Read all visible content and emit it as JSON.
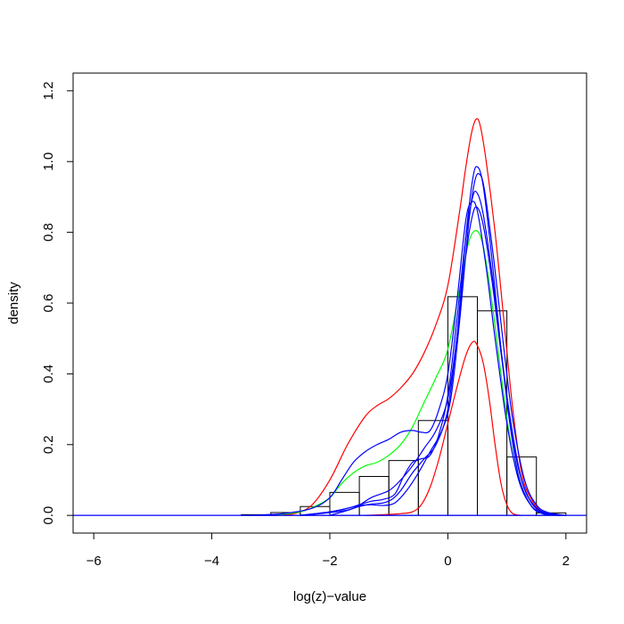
{
  "chart_data": {
    "type": "histogram",
    "title": "",
    "xlabel": "log(z)−value",
    "ylabel": "density",
    "xlim": [
      -6.35,
      2.35
    ],
    "ylim": [
      -0.05,
      1.25
    ],
    "x_ticks": [
      -6,
      -4,
      -2,
      0,
      2
    ],
    "x_tick_labels": [
      "−6",
      "−4",
      "−2",
      "0",
      "2"
    ],
    "y_ticks": [
      0.0,
      0.2,
      0.4,
      0.6,
      0.8,
      1.0,
      1.2
    ],
    "y_tick_labels": [
      "0.0",
      "0.2",
      "0.4",
      "0.6",
      "0.8",
      "1.0",
      "1.2"
    ],
    "grid": false,
    "legend": "none",
    "histogram": {
      "bin_width": 0.5,
      "bins": [
        {
          "x0": -3.5,
          "x1": -3.0,
          "density": 0.002
        },
        {
          "x0": -3.0,
          "x1": -2.5,
          "density": 0.008
        },
        {
          "x0": -2.5,
          "x1": -2.0,
          "density": 0.025
        },
        {
          "x0": -2.0,
          "x1": -1.5,
          "density": 0.065
        },
        {
          "x0": -1.5,
          "x1": -1.0,
          "density": 0.11
        },
        {
          "x0": -1.0,
          "x1": -0.5,
          "density": 0.155
        },
        {
          "x0": -0.5,
          "x1": 0.0,
          "density": 0.268
        },
        {
          "x0": 0.0,
          "x1": 0.5,
          "density": 0.618
        },
        {
          "x0": 0.5,
          "x1": 1.0,
          "density": 0.578
        },
        {
          "x0": 1.0,
          "x1": 1.5,
          "density": 0.165
        },
        {
          "x0": 1.5,
          "x1": 2.0,
          "density": 0.007
        }
      ]
    },
    "series": [
      {
        "role": "baseline",
        "color": "#0000ff",
        "points": [
          [
            -6.35,
            0
          ],
          [
            2.35,
            0
          ]
        ]
      },
      {
        "role": "upper-band",
        "color": "#ff0000",
        "points": [
          [
            -3.0,
            0.0
          ],
          [
            -2.6,
            0.005
          ],
          [
            -2.3,
            0.03
          ],
          [
            -2.0,
            0.1
          ],
          [
            -1.7,
            0.2
          ],
          [
            -1.4,
            0.28
          ],
          [
            -1.2,
            0.31
          ],
          [
            -1.0,
            0.33
          ],
          [
            -0.8,
            0.36
          ],
          [
            -0.6,
            0.4
          ],
          [
            -0.4,
            0.46
          ],
          [
            -0.2,
            0.54
          ],
          [
            0.0,
            0.65
          ],
          [
            0.2,
            0.86
          ],
          [
            0.3,
            0.98
          ],
          [
            0.4,
            1.08
          ],
          [
            0.48,
            1.12
          ],
          [
            0.55,
            1.1
          ],
          [
            0.65,
            1.0
          ],
          [
            0.8,
            0.8
          ],
          [
            0.95,
            0.55
          ],
          [
            1.1,
            0.3
          ],
          [
            1.25,
            0.12
          ],
          [
            1.4,
            0.05
          ],
          [
            1.6,
            0.01
          ],
          [
            1.9,
            0.0
          ]
        ]
      },
      {
        "role": "lower-band",
        "color": "#ff0000",
        "points": [
          [
            -1.4,
            0.0
          ],
          [
            -1.1,
            0.002
          ],
          [
            -0.8,
            0.005
          ],
          [
            -0.6,
            0.01
          ],
          [
            -0.45,
            0.03
          ],
          [
            -0.3,
            0.08
          ],
          [
            -0.15,
            0.16
          ],
          [
            0.0,
            0.26
          ],
          [
            0.15,
            0.36
          ],
          [
            0.3,
            0.45
          ],
          [
            0.42,
            0.49
          ],
          [
            0.5,
            0.48
          ],
          [
            0.6,
            0.43
          ],
          [
            0.7,
            0.33
          ],
          [
            0.8,
            0.2
          ],
          [
            0.9,
            0.09
          ],
          [
            1.0,
            0.03
          ],
          [
            1.1,
            0.005
          ],
          [
            1.25,
            0.0
          ]
        ]
      },
      {
        "role": "estimate",
        "color": "#00ff00",
        "points": [
          [
            -3.0,
            0.0
          ],
          [
            -2.5,
            0.01
          ],
          [
            -2.2,
            0.03
          ],
          [
            -2.0,
            0.05
          ],
          [
            -1.8,
            0.09
          ],
          [
            -1.6,
            0.12
          ],
          [
            -1.4,
            0.14
          ],
          [
            -1.2,
            0.15
          ],
          [
            -1.0,
            0.17
          ],
          [
            -0.8,
            0.2
          ],
          [
            -0.6,
            0.25
          ],
          [
            -0.4,
            0.32
          ],
          [
            -0.2,
            0.39
          ],
          [
            0.0,
            0.47
          ],
          [
            0.2,
            0.64
          ],
          [
            0.35,
            0.77
          ],
          [
            0.48,
            0.805
          ],
          [
            0.6,
            0.76
          ],
          [
            0.75,
            0.6
          ],
          [
            0.9,
            0.4
          ],
          [
            1.05,
            0.22
          ],
          [
            1.2,
            0.1
          ],
          [
            1.4,
            0.03
          ],
          [
            1.6,
            0.005
          ],
          [
            1.9,
            0.0
          ]
        ]
      },
      {
        "role": "replicate",
        "color": "#0000ff",
        "points": [
          [
            -3.4,
            0.0
          ],
          [
            -2.8,
            0.005
          ],
          [
            -2.3,
            0.02
          ],
          [
            -2.0,
            0.05
          ],
          [
            -1.8,
            0.1
          ],
          [
            -1.6,
            0.15
          ],
          [
            -1.4,
            0.18
          ],
          [
            -1.2,
            0.2
          ],
          [
            -1.0,
            0.215
          ],
          [
            -0.8,
            0.235
          ],
          [
            -0.6,
            0.24
          ],
          [
            -0.45,
            0.235
          ],
          [
            -0.3,
            0.24
          ],
          [
            -0.15,
            0.3
          ],
          [
            0.0,
            0.4
          ],
          [
            0.15,
            0.6
          ],
          [
            0.3,
            0.83
          ],
          [
            0.4,
            0.885
          ],
          [
            0.5,
            0.86
          ],
          [
            0.65,
            0.7
          ],
          [
            0.8,
            0.5
          ],
          [
            1.0,
            0.26
          ],
          [
            1.2,
            0.1
          ],
          [
            1.4,
            0.03
          ],
          [
            1.6,
            0.008
          ],
          [
            1.9,
            0.0
          ]
        ]
      },
      {
        "role": "replicate",
        "color": "#0000ff",
        "points": [
          [
            -2.5,
            0.0
          ],
          [
            -2.0,
            0.01
          ],
          [
            -1.7,
            0.02
          ],
          [
            -1.5,
            0.03
          ],
          [
            -1.3,
            0.04
          ],
          [
            -1.1,
            0.045
          ],
          [
            -0.9,
            0.06
          ],
          [
            -0.75,
            0.11
          ],
          [
            -0.6,
            0.15
          ],
          [
            -0.45,
            0.16
          ],
          [
            -0.3,
            0.17
          ],
          [
            -0.15,
            0.23
          ],
          [
            0.0,
            0.34
          ],
          [
            0.15,
            0.55
          ],
          [
            0.3,
            0.78
          ],
          [
            0.42,
            0.9
          ],
          [
            0.5,
            0.91
          ],
          [
            0.6,
            0.85
          ],
          [
            0.75,
            0.68
          ],
          [
            0.9,
            0.47
          ],
          [
            1.05,
            0.28
          ],
          [
            1.25,
            0.1
          ],
          [
            1.45,
            0.03
          ],
          [
            1.7,
            0.005
          ],
          [
            2.0,
            0.0
          ]
        ]
      },
      {
        "role": "replicate",
        "color": "#0000ff",
        "points": [
          [
            -2.5,
            0.0
          ],
          [
            -2.0,
            0.008
          ],
          [
            -1.7,
            0.015
          ],
          [
            -1.5,
            0.025
          ],
          [
            -1.3,
            0.032
          ],
          [
            -1.1,
            0.035
          ],
          [
            -0.95,
            0.045
          ],
          [
            -0.8,
            0.07
          ],
          [
            -0.6,
            0.12
          ],
          [
            -0.4,
            0.16
          ],
          [
            -0.2,
            0.2
          ],
          [
            0.0,
            0.3
          ],
          [
            0.15,
            0.5
          ],
          [
            0.3,
            0.78
          ],
          [
            0.42,
            0.95
          ],
          [
            0.5,
            0.985
          ],
          [
            0.6,
            0.93
          ],
          [
            0.75,
            0.72
          ],
          [
            0.9,
            0.47
          ],
          [
            1.05,
            0.26
          ],
          [
            1.2,
            0.11
          ],
          [
            1.4,
            0.03
          ],
          [
            1.6,
            0.005
          ],
          [
            1.9,
            0.0
          ]
        ]
      },
      {
        "role": "replicate",
        "color": "#0000ff",
        "points": [
          [
            -2.5,
            0.0
          ],
          [
            -2.0,
            0.01
          ],
          [
            -1.7,
            0.02
          ],
          [
            -1.5,
            0.028
          ],
          [
            -1.3,
            0.03
          ],
          [
            -1.1,
            0.028
          ],
          [
            -0.9,
            0.035
          ],
          [
            -0.7,
            0.07
          ],
          [
            -0.5,
            0.12
          ],
          [
            -0.3,
            0.18
          ],
          [
            -0.1,
            0.24
          ],
          [
            0.05,
            0.33
          ],
          [
            0.2,
            0.55
          ],
          [
            0.35,
            0.82
          ],
          [
            0.45,
            0.94
          ],
          [
            0.53,
            0.965
          ],
          [
            0.62,
            0.92
          ],
          [
            0.78,
            0.72
          ],
          [
            0.95,
            0.47
          ],
          [
            1.1,
            0.27
          ],
          [
            1.3,
            0.1
          ],
          [
            1.5,
            0.03
          ],
          [
            1.7,
            0.008
          ],
          [
            2.0,
            0.0
          ]
        ]
      },
      {
        "role": "replicate",
        "color": "#0000ff",
        "points": [
          [
            -2.0,
            0.0
          ],
          [
            -1.6,
            0.02
          ],
          [
            -1.3,
            0.05
          ],
          [
            -1.0,
            0.07
          ],
          [
            -0.8,
            0.1
          ],
          [
            -0.6,
            0.14
          ],
          [
            -0.4,
            0.19
          ],
          [
            -0.2,
            0.24
          ],
          [
            0.0,
            0.33
          ],
          [
            0.15,
            0.5
          ],
          [
            0.3,
            0.73
          ],
          [
            0.42,
            0.85
          ],
          [
            0.5,
            0.87
          ],
          [
            0.6,
            0.82
          ],
          [
            0.75,
            0.66
          ],
          [
            0.9,
            0.46
          ],
          [
            1.05,
            0.28
          ],
          [
            1.2,
            0.13
          ],
          [
            1.4,
            0.04
          ],
          [
            1.6,
            0.01
          ],
          [
            1.9,
            0.0
          ]
        ]
      }
    ]
  }
}
